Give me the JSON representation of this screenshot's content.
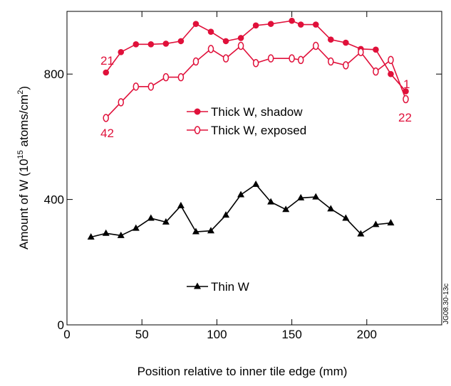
{
  "chart_data": {
    "type": "line",
    "title": "",
    "xlabel": "Position relative to inner tile edge (mm)",
    "ylabel_main": "Amount of W (10",
    "ylabel_sup1": "15",
    "ylabel_mid": " atoms/cm",
    "ylabel_sup2": "2",
    "ylabel_end": ")",
    "xlim": [
      0,
      250
    ],
    "ylim": [
      0,
      1000
    ],
    "xticks": [
      0,
      50,
      100,
      150,
      200
    ],
    "yticks": [
      0,
      400,
      800
    ],
    "grid": false,
    "figure_id": "JG08.30-13c",
    "series": [
      {
        "name": "Thick W, shadow",
        "color": "#e0103a",
        "marker": "filled-circle",
        "x": [
          26,
          36,
          46,
          56,
          66,
          76,
          86,
          96,
          106,
          116,
          126,
          136,
          150,
          156,
          166,
          176,
          186,
          196,
          206,
          216,
          226
        ],
        "y": [
          805,
          870,
          895,
          895,
          897,
          905,
          960,
          935,
          905,
          915,
          955,
          960,
          970,
          958,
          958,
          910,
          900,
          880,
          878,
          800,
          745
        ]
      },
      {
        "name": "Thick W, exposed",
        "color": "#e0103a",
        "marker": "open-circle",
        "x": [
          26,
          36,
          46,
          56,
          66,
          76,
          86,
          96,
          106,
          116,
          126,
          136,
          150,
          156,
          166,
          176,
          186,
          196,
          206,
          216,
          226
        ],
        "y": [
          660,
          710,
          760,
          760,
          790,
          790,
          840,
          880,
          850,
          890,
          835,
          850,
          850,
          845,
          890,
          840,
          828,
          870,
          808,
          845,
          720
        ]
      },
      {
        "name": "Thin W",
        "color": "#000000",
        "marker": "filled-triangle",
        "x": [
          16,
          26,
          36,
          46,
          56,
          66,
          76,
          86,
          96,
          106,
          116,
          126,
          136,
          146,
          156,
          166,
          176,
          186,
          196,
          206,
          216
        ],
        "y": [
          280,
          292,
          285,
          308,
          340,
          328,
          380,
          297,
          300,
          350,
          415,
          448,
          392,
          368,
          405,
          408,
          370,
          340,
          290,
          320,
          325
        ]
      }
    ],
    "annotations": [
      {
        "text": "21",
        "color": "#e0103a"
      },
      {
        "text": "42",
        "color": "#e0103a"
      },
      {
        "text": "1",
        "color": "#e0103a"
      },
      {
        "text": "22",
        "color": "#e0103a"
      }
    ]
  }
}
